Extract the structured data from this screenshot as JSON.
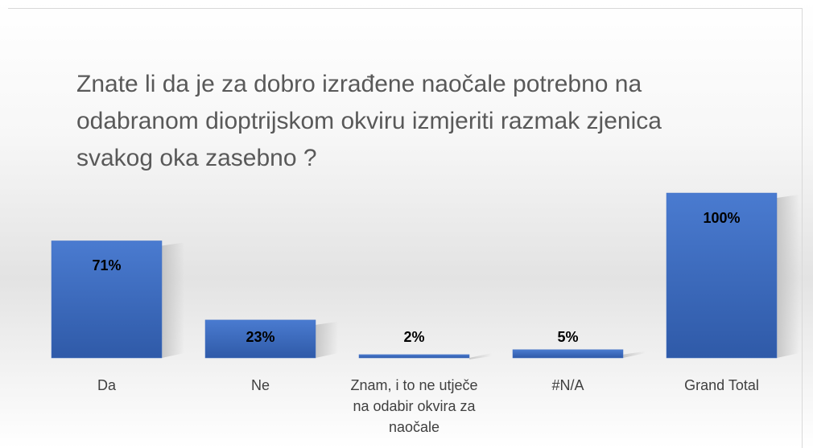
{
  "chart_data": {
    "type": "bar",
    "title": "Znate li da je za dobro izrađene naočale potrebno na odabranom dioptrijskom okviru izmjeriti razmak zjenica svakog oka zasebno ?",
    "categories": [
      "Da",
      "Ne",
      "Znam, i to ne utječe na odabir okvira za naočale",
      "#N/A",
      "Grand Total"
    ],
    "values": [
      71,
      23,
      2,
      5,
      100
    ],
    "value_labels": [
      "71%",
      "23%",
      "2%",
      "5%",
      "100%"
    ],
    "color": "#4472c4"
  }
}
